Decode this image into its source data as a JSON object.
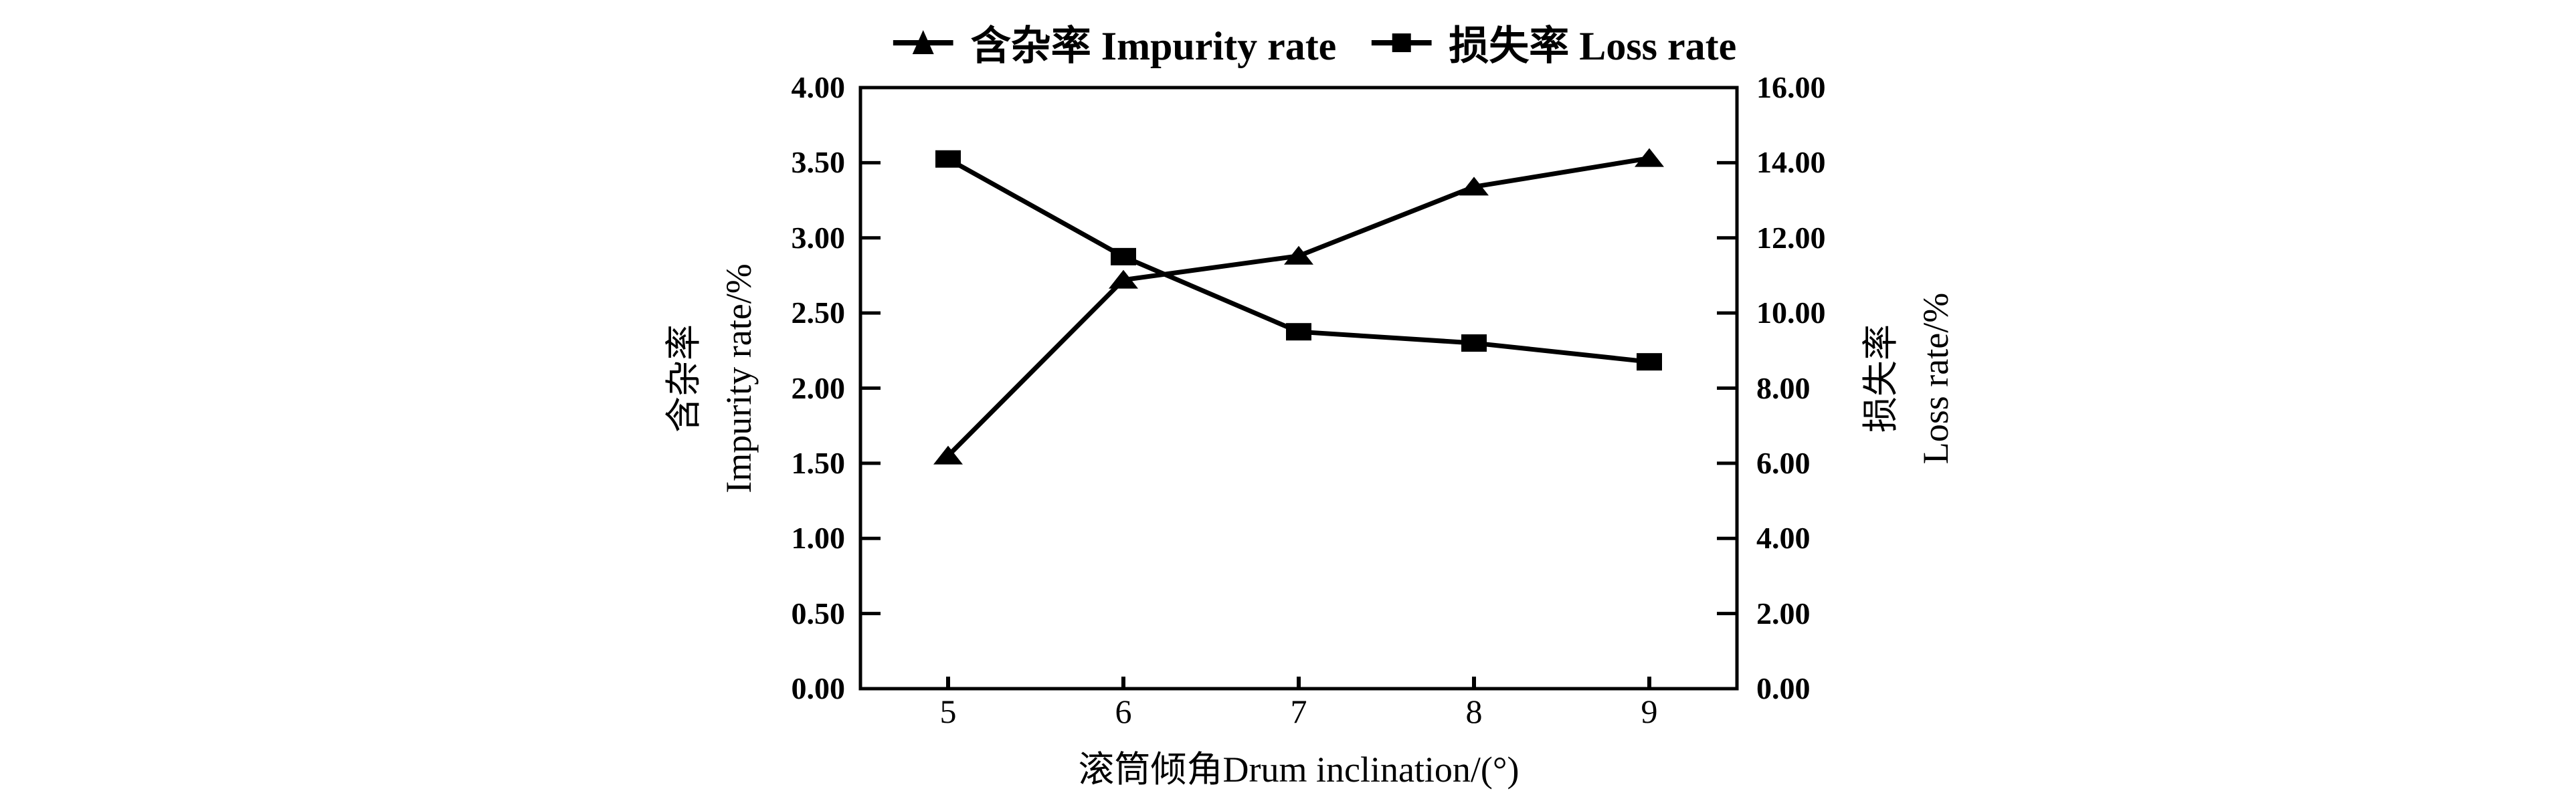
{
  "figure": {
    "background": "#ffffff",
    "ink": "#000000"
  },
  "chart_data": {
    "type": "line",
    "categories": [
      5,
      6,
      7,
      8,
      9
    ],
    "x_tick_labels": [
      "5",
      "6",
      "7",
      "8",
      "9"
    ],
    "xlabel": "滚筒倾角Drum inclination/(°)",
    "left_axis": {
      "label_zh": "含杂率",
      "label_en": "Impurity rate/%",
      "min": 0,
      "max": 4,
      "step": 0.5,
      "tick_labels": [
        "0.00",
        "0.50",
        "1.00",
        "1.50",
        "2.00",
        "2.50",
        "3.00",
        "3.50",
        "4.00"
      ]
    },
    "right_axis": {
      "label_zh": "损失率",
      "label_en": "Loss rate/%",
      "min": 0,
      "max": 16,
      "step": 2,
      "tick_labels": [
        "0.00",
        "2.00",
        "4.00",
        "6.00",
        "8.00",
        "10.00",
        "12.00",
        "14.00",
        "16.00"
      ]
    },
    "series": [
      {
        "name": "含杂率 Impurity rate",
        "axis": "left",
        "marker": "triangle",
        "color": "#000000",
        "values": [
          1.55,
          2.72,
          2.88,
          3.34,
          3.53
        ]
      },
      {
        "name": "损失率 Loss rate",
        "axis": "right",
        "marker": "square",
        "color": "#000000",
        "values": [
          14.1,
          11.5,
          9.5,
          9.2,
          8.7
        ]
      }
    ],
    "grid": false,
    "legend_position": "top"
  }
}
